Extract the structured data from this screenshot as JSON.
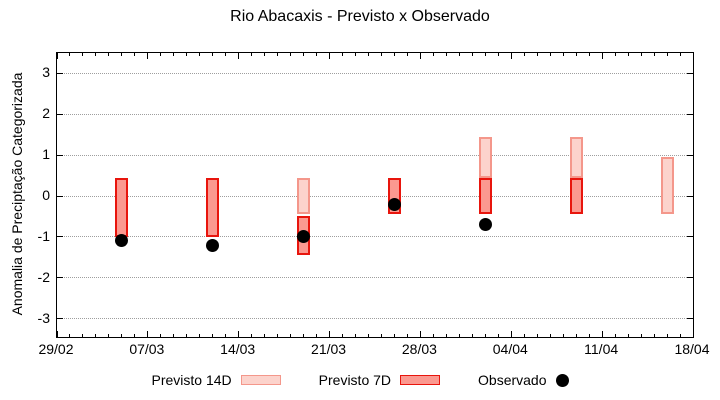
{
  "title": "Rio Abacaxis - Previsto x Observado",
  "y_axis": {
    "label": "Anomalia de Preciptação Categorizada",
    "ticks": [
      3,
      2,
      1,
      0,
      -1,
      -2,
      -3
    ]
  },
  "x_axis": {
    "tick_labels": [
      "29/02",
      "07/03",
      "14/03",
      "21/03",
      "28/03",
      "04/04",
      "11/04",
      "18/04"
    ],
    "major_tick_every_days": 7,
    "minor_tick_every_days": 1,
    "span_days": 49
  },
  "legend": {
    "items": [
      {
        "label": "Previsto 14D",
        "swatch": "14d"
      },
      {
        "label": "Previsto 7D",
        "swatch": "7d"
      },
      {
        "label": "Observado",
        "swatch": "dot"
      }
    ]
  },
  "colors": {
    "previsto_14d_fill": "#fcd3cc",
    "previsto_14d_border": "#f4978b",
    "previsto_7d_fill": "#fb9990",
    "previsto_7d_border": "#e8150d",
    "observado_dot": "#000000",
    "grid": "#9e9e9e"
  },
  "chart_data": {
    "type": "bar",
    "subtype": "range-bars with scatter overlay",
    "title": "Rio Abacaxis - Previsto x Observado",
    "xlabel": "",
    "ylabel": "Anomalia de Preciptação Categorizada",
    "ylim": [
      -3.45,
      3.5
    ],
    "xlim_days": [
      0,
      49
    ],
    "x_start_label": "29/02",
    "grid": "dotted horizontal at integer y values",
    "legend_position": "below chart",
    "series": [
      {
        "name": "Previsto 14D",
        "style": "range-bar",
        "points": [
          {
            "date": "19/03",
            "day": 19,
            "low": -0.45,
            "high": 0.45
          },
          {
            "date": "02/04",
            "day": 33,
            "low": 0.45,
            "high": 1.45
          },
          {
            "date": "09/04",
            "day": 40,
            "low": 0.45,
            "high": 1.45
          },
          {
            "date": "16/04",
            "day": 47,
            "low": -0.45,
            "high": 0.95
          }
        ]
      },
      {
        "name": "Previsto 7D",
        "style": "range-bar",
        "points": [
          {
            "date": "05/03",
            "day": 5,
            "low": -1.0,
            "high": 0.45
          },
          {
            "date": "12/03",
            "day": 12,
            "low": -1.0,
            "high": 0.45
          },
          {
            "date": "19/03",
            "day": 19,
            "low": -1.45,
            "high": -0.5
          },
          {
            "date": "26/03",
            "day": 26,
            "low": -0.45,
            "high": 0.45
          },
          {
            "date": "02/04",
            "day": 33,
            "low": -0.45,
            "high": 0.45
          },
          {
            "date": "09/04",
            "day": 40,
            "low": -0.45,
            "high": 0.45
          }
        ]
      },
      {
        "name": "Observado",
        "style": "scatter",
        "points": [
          {
            "date": "05/03",
            "day": 5,
            "value": -1.1
          },
          {
            "date": "12/03",
            "day": 12,
            "value": -1.2
          },
          {
            "date": "19/03",
            "day": 19,
            "value": -1.0
          },
          {
            "date": "26/03",
            "day": 26,
            "value": -0.2
          },
          {
            "date": "02/04",
            "day": 33,
            "value": -0.7
          }
        ]
      }
    ]
  }
}
